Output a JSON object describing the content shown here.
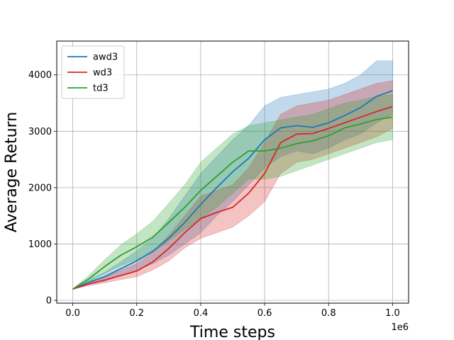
{
  "chart_data": {
    "type": "line",
    "title": "",
    "xlabel": "Time steps",
    "ylabel": "Average Return",
    "x_offset_label": "1e6",
    "xlim": [
      -0.05,
      1.05
    ],
    "ylim": [
      -50,
      4600
    ],
    "x_ticks": [
      0.0,
      0.2,
      0.4,
      0.6,
      0.8,
      1.0
    ],
    "x_tick_labels": [
      "0.0",
      "0.2",
      "0.4",
      "0.6",
      "0.8",
      "1.0"
    ],
    "y_ticks": [
      0,
      1000,
      2000,
      3000,
      4000
    ],
    "y_tick_labels": [
      "0",
      "1000",
      "2000",
      "3000",
      "4000"
    ],
    "grid": true,
    "legend_position": "upper-left",
    "x": [
      0.0,
      0.05,
      0.1,
      0.15,
      0.2,
      0.25,
      0.3,
      0.35,
      0.4,
      0.45,
      0.5,
      0.55,
      0.6,
      0.65,
      0.7,
      0.75,
      0.8,
      0.85,
      0.9,
      0.95,
      1.0
    ],
    "series": [
      {
        "name": "awd3",
        "color": "#1f77b4",
        "values": [
          200,
          320,
          420,
          560,
          700,
          870,
          1100,
          1380,
          1700,
          2000,
          2280,
          2520,
          2850,
          3060,
          3100,
          3070,
          3150,
          3280,
          3420,
          3620,
          3720
        ],
        "lower": [
          200,
          280,
          340,
          440,
          530,
          650,
          800,
          1000,
          1200,
          1500,
          1750,
          2050,
          2350,
          2550,
          2650,
          2600,
          2700,
          2850,
          2950,
          3150,
          3300
        ],
        "upper": [
          200,
          360,
          500,
          680,
          880,
          1100,
          1450,
          1850,
          2250,
          2550,
          2850,
          3100,
          3450,
          3600,
          3650,
          3700,
          3750,
          3850,
          4000,
          4250,
          4250
        ]
      },
      {
        "name": "wd3",
        "color": "#d62728",
        "values": [
          200,
          290,
          360,
          440,
          520,
          680,
          920,
          1200,
          1450,
          1560,
          1650,
          1900,
          2250,
          2800,
          2950,
          2960,
          3050,
          3150,
          3250,
          3350,
          3440
        ],
        "lower": [
          200,
          260,
          310,
          370,
          420,
          540,
          700,
          930,
          1100,
          1200,
          1300,
          1500,
          1750,
          2250,
          2450,
          2500,
          2600,
          2700,
          2800,
          2900,
          3050
        ],
        "upper": [
          200,
          330,
          420,
          530,
          650,
          850,
          1150,
          1500,
          1850,
          1950,
          2050,
          2350,
          2800,
          3300,
          3450,
          3500,
          3550,
          3650,
          3750,
          3850,
          3900
        ]
      },
      {
        "name": "td3",
        "color": "#2ca02c",
        "values": [
          200,
          380,
          600,
          800,
          950,
          1120,
          1380,
          1650,
          1950,
          2200,
          2450,
          2650,
          2650,
          2700,
          2780,
          2830,
          2920,
          3060,
          3130,
          3210,
          3250
        ],
        "lower": [
          200,
          330,
          480,
          620,
          720,
          850,
          1050,
          1250,
          1450,
          1650,
          1900,
          2150,
          2150,
          2200,
          2300,
          2400,
          2500,
          2600,
          2700,
          2800,
          2850
        ],
        "upper": [
          200,
          440,
          720,
          980,
          1180,
          1400,
          1720,
          2050,
          2450,
          2700,
          2950,
          3100,
          3150,
          3200,
          3250,
          3300,
          3400,
          3500,
          3550,
          3620,
          3650
        ]
      }
    ]
  }
}
